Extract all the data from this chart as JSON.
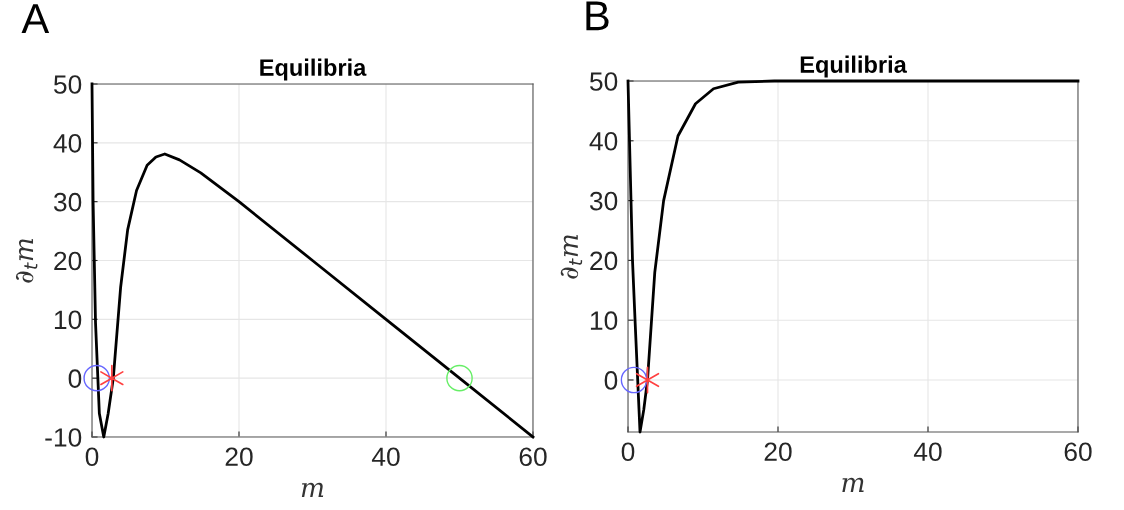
{
  "chart_data": [
    {
      "type": "line",
      "title": "Equilibria",
      "xlabel": "m",
      "ylabel": "∂$_{t}$m",
      "annotations": [
        "A"
      ],
      "xlim": [
        0,
        60
      ],
      "ylim": [
        -10,
        50
      ],
      "xticks": [
        0,
        20,
        40,
        60
      ],
      "yticks": [
        -10,
        0,
        10,
        20,
        30,
        40,
        50
      ],
      "grid": true,
      "series": [
        {
          "color": "#000000",
          "x": [
            0,
            0.15,
            0.48,
            1.0,
            1.6,
            2.2,
            2.9,
            3.9,
            4.85,
            6.06,
            7.5,
            8.7,
            9.9,
            11.9,
            14.8,
            20,
            30,
            40,
            50,
            60
          ],
          "values": [
            50,
            30,
            9.4,
            -6,
            -10,
            -6,
            0,
            15.5,
            25.2,
            31.9,
            36.2,
            37.6,
            38.1,
            37.1,
            34.9,
            30,
            20,
            10,
            0,
            -10
          ]
        },
        {
          "type": "scatter",
          "marker": "circle",
          "color": "#6666ff",
          "x": [
            0.64
          ],
          "values": [
            0
          ]
        },
        {
          "type": "scatter",
          "marker": "cross",
          "color": "#ff4040",
          "x": [
            2.7
          ],
          "values": [
            0
          ]
        },
        {
          "type": "scatter",
          "marker": "circle",
          "color": "#66ee66",
          "x": [
            50
          ],
          "values": [
            0
          ]
        }
      ]
    },
    {
      "type": "line",
      "title": "Equilibria",
      "xlabel": "m",
      "ylabel": "∂$_{t}$m",
      "annotations": [
        "B"
      ],
      "xlim": [
        0,
        60
      ],
      "ylim": [
        -8.7,
        50
      ],
      "xticks": [
        0,
        20,
        40,
        60
      ],
      "yticks": [
        0,
        10,
        20,
        30,
        40,
        50
      ],
      "grid": true,
      "series": [
        {
          "color": "#000000",
          "x": [
            0,
            0.3,
            0.6,
            0.95,
            1.6,
            2.1,
            2.6,
            3.57,
            4.75,
            6.66,
            9.0,
            11.4,
            14.7,
            19.5,
            60
          ],
          "values": [
            50,
            35,
            20,
            9.7,
            -8.7,
            -5,
            0,
            18,
            30,
            40.8,
            46.2,
            48.7,
            49.8,
            50,
            50
          ]
        },
        {
          "type": "scatter",
          "marker": "circle",
          "color": "#6666ff",
          "x": [
            0.8
          ],
          "values": [
            0
          ]
        },
        {
          "type": "scatter",
          "marker": "cross",
          "color": "#ff4040",
          "x": [
            2.6
          ],
          "values": [
            0
          ]
        }
      ]
    }
  ]
}
